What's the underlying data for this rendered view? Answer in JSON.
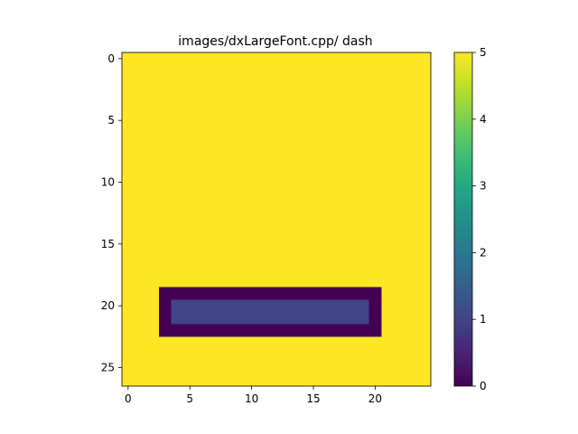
{
  "chart_data": {
    "type": "heatmap",
    "title": "images/dxLargeFont.cpp/ dash",
    "xlabel": "",
    "ylabel": "",
    "n_cols": 25,
    "n_rows": 27,
    "xticks": [
      0,
      5,
      10,
      15,
      20
    ],
    "yticks": [
      0,
      5,
      10,
      15,
      20,
      25
    ],
    "xlim": [
      -0.5,
      24.5
    ],
    "ylim": [
      26.5,
      -0.5
    ],
    "background_value": 5,
    "regions": [
      {
        "value": 0,
        "row_start": 19,
        "row_end": 22,
        "col_start": 3,
        "col_end": 20
      },
      {
        "value": 1,
        "row_start": 20,
        "row_end": 21,
        "col_start": 4,
        "col_end": 19
      }
    ],
    "colorbar": {
      "cmap": "viridis",
      "vmin": 0,
      "vmax": 5,
      "ticks": [
        0,
        1,
        2,
        3,
        4,
        5
      ]
    },
    "grid": false
  }
}
